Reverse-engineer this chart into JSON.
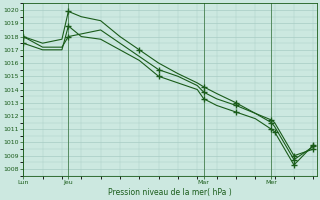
{
  "title": "Pression niveau de la mer( hPa )",
  "bg_color": "#cce8e0",
  "plot_bg_color": "#cce8e0",
  "grid_color": "#a8ccc4",
  "line_color": "#1a5c1a",
  "text_color": "#1a5c1a",
  "ylim_min": 1007.5,
  "ylim_max": 1020.5,
  "ytick_min": 1008,
  "ytick_max": 1020,
  "xlabel": "Pression niveau de la mer( hPa )",
  "xtick_labels": [
    "Lun",
    "Jeu",
    "Mar",
    "Mer"
  ],
  "xtick_positions": [
    0,
    14,
    56,
    77
  ],
  "vline_positions": [
    0,
    14,
    56,
    77
  ],
  "xlim_max": 91,
  "s1_x": [
    0,
    6,
    12,
    14,
    18,
    24,
    30,
    36,
    42,
    48,
    54,
    56,
    60,
    66,
    72,
    77,
    78,
    84,
    90
  ],
  "s1_y": [
    1018.0,
    1017.5,
    1017.8,
    1019.9,
    1019.5,
    1019.2,
    1018.0,
    1017.0,
    1016.0,
    1015.2,
    1014.5,
    1014.2,
    1013.7,
    1013.0,
    1012.2,
    1011.7,
    1011.5,
    1009.0,
    1009.5
  ],
  "s2_x": [
    0,
    6,
    12,
    14,
    18,
    24,
    30,
    36,
    42,
    48,
    54,
    56,
    60,
    66,
    72,
    77,
    78,
    84,
    90
  ],
  "s2_y": [
    1018.0,
    1017.2,
    1017.2,
    1018.0,
    1018.2,
    1018.5,
    1017.5,
    1016.5,
    1015.5,
    1015.0,
    1014.3,
    1013.8,
    1013.3,
    1012.8,
    1012.2,
    1011.5,
    1011.2,
    1008.7,
    1009.7
  ],
  "s3_x": [
    0,
    6,
    12,
    14,
    18,
    24,
    30,
    36,
    42,
    48,
    54,
    56,
    60,
    66,
    72,
    77,
    78,
    84,
    90
  ],
  "s3_y": [
    1017.5,
    1017.0,
    1017.0,
    1018.8,
    1018.0,
    1017.8,
    1017.0,
    1016.2,
    1015.0,
    1014.5,
    1014.0,
    1013.3,
    1012.8,
    1012.3,
    1011.8,
    1011.0,
    1010.8,
    1008.3,
    1009.8
  ],
  "m1_x": [
    0,
    14,
    36,
    56,
    66,
    77,
    84,
    90
  ],
  "m1_y": [
    1018.0,
    1019.9,
    1017.0,
    1014.2,
    1013.0,
    1011.7,
    1009.0,
    1009.5
  ],
  "m2_x": [
    0,
    14,
    42,
    56,
    66,
    77,
    84,
    90
  ],
  "m2_y": [
    1018.0,
    1018.0,
    1015.5,
    1013.8,
    1012.8,
    1011.5,
    1008.7,
    1009.7
  ],
  "m3_x": [
    0,
    14,
    42,
    56,
    66,
    77,
    78,
    84,
    90
  ],
  "m3_y": [
    1017.5,
    1018.8,
    1015.0,
    1013.3,
    1012.3,
    1011.0,
    1010.8,
    1008.3,
    1009.8
  ]
}
